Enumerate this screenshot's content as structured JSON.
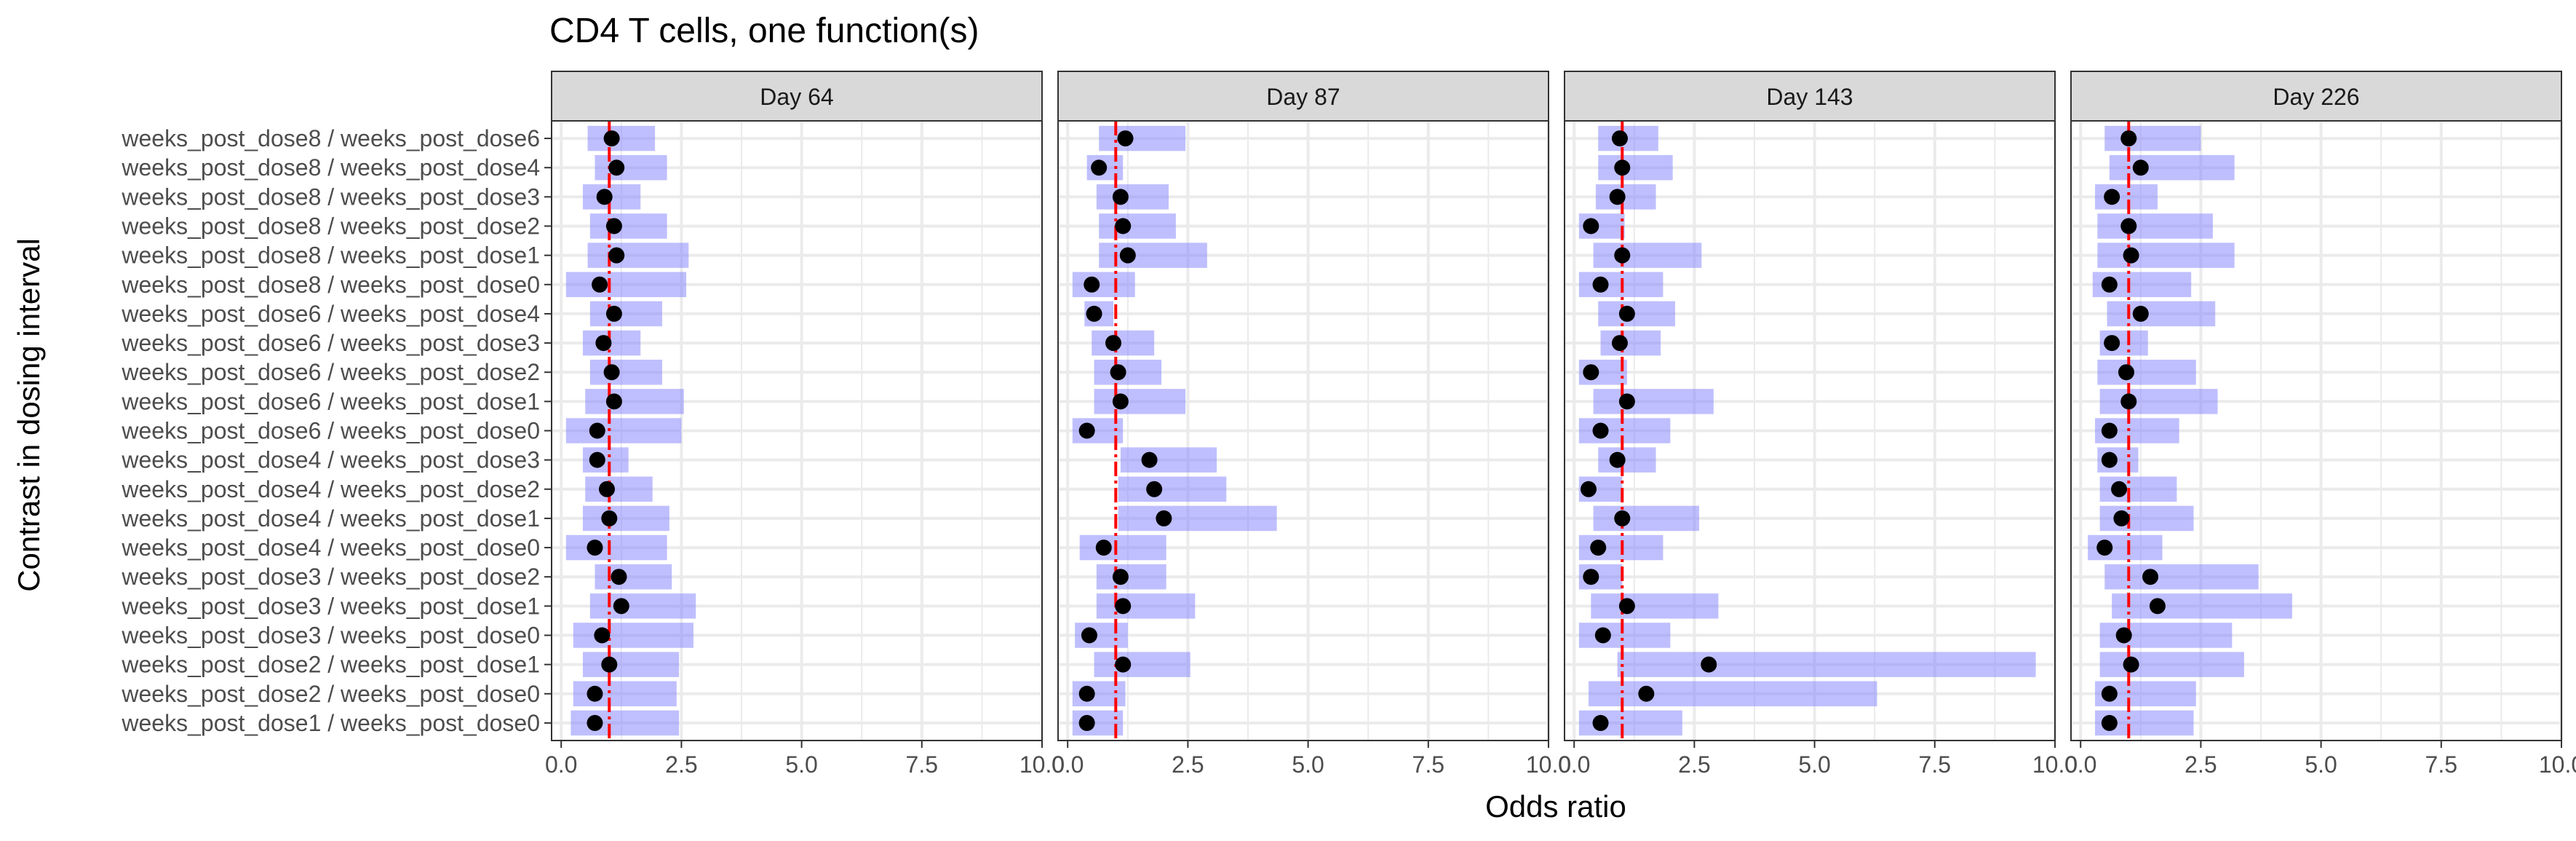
{
  "chart_data": {
    "type": "scatter",
    "title": "CD4 T cells, one function(s)",
    "xlabel": "Odds ratio",
    "ylabel": "Contrast in dosing interval",
    "xlim": [
      -0.2,
      10.0
    ],
    "x_ticks": [
      0.0,
      2.5,
      5.0,
      7.5,
      10.0
    ],
    "x_tick_labels": [
      "0.0",
      "2.5",
      "5.0",
      "7.5",
      "10.0"
    ],
    "reference_line": 1.0,
    "grid": true,
    "legend": "none",
    "colors": {
      "interval": "#8080ff",
      "point": "#000000",
      "reference": "#ff0000",
      "strip_fill": "#d9d9d9",
      "panel_border": "#333333",
      "grid": "#ebebeb"
    },
    "categories": [
      "weeks_post_dose8 / weeks_post_dose6",
      "weeks_post_dose8 / weeks_post_dose4",
      "weeks_post_dose8 / weeks_post_dose3",
      "weeks_post_dose8 / weeks_post_dose2",
      "weeks_post_dose8 / weeks_post_dose1",
      "weeks_post_dose8 / weeks_post_dose0",
      "weeks_post_dose6 / weeks_post_dose4",
      "weeks_post_dose6 / weeks_post_dose3",
      "weeks_post_dose6 / weeks_post_dose2",
      "weeks_post_dose6 / weeks_post_dose1",
      "weeks_post_dose6 / weeks_post_dose0",
      "weeks_post_dose4 / weeks_post_dose3",
      "weeks_post_dose4 / weeks_post_dose2",
      "weeks_post_dose4 / weeks_post_dose1",
      "weeks_post_dose4 / weeks_post_dose0",
      "weeks_post_dose3 / weeks_post_dose2",
      "weeks_post_dose3 / weeks_post_dose1",
      "weeks_post_dose3 / weeks_post_dose0",
      "weeks_post_dose2 / weeks_post_dose1",
      "weeks_post_dose2 / weeks_post_dose0",
      "weeks_post_dose1 / weeks_post_dose0"
    ],
    "panels": [
      {
        "name": "Day 64",
        "estimate": [
          1.05,
          1.15,
          0.9,
          1.1,
          1.15,
          0.8,
          1.1,
          0.88,
          1.05,
          1.1,
          0.75,
          0.75,
          0.95,
          1.0,
          0.7,
          1.2,
          1.25,
          0.85,
          1.0,
          0.7,
          0.7
        ],
        "lower": [
          0.55,
          0.7,
          0.45,
          0.6,
          0.55,
          0.1,
          0.6,
          0.45,
          0.6,
          0.5,
          0.1,
          0.45,
          0.5,
          0.45,
          0.1,
          0.7,
          0.6,
          0.25,
          0.45,
          0.25,
          0.2
        ],
        "upper": [
          1.95,
          2.2,
          1.65,
          2.2,
          2.65,
          2.6,
          2.1,
          1.65,
          2.1,
          2.55,
          2.5,
          1.4,
          1.9,
          2.25,
          2.2,
          2.3,
          2.8,
          2.75,
          2.45,
          2.4,
          2.45
        ]
      },
      {
        "name": "Day 87",
        "estimate": [
          1.2,
          0.65,
          1.1,
          1.15,
          1.25,
          0.5,
          0.55,
          0.95,
          1.05,
          1.1,
          0.4,
          1.7,
          1.8,
          2.0,
          0.75,
          1.1,
          1.15,
          0.45,
          1.15,
          0.4,
          0.4
        ],
        "lower": [
          0.65,
          0.4,
          0.6,
          0.65,
          0.65,
          0.1,
          0.35,
          0.5,
          0.55,
          0.55,
          0.1,
          1.1,
          1.05,
          1.05,
          0.25,
          0.6,
          0.6,
          0.15,
          0.55,
          0.1,
          0.1
        ],
        "upper": [
          2.45,
          1.15,
          2.1,
          2.25,
          2.9,
          1.4,
          0.95,
          1.8,
          1.95,
          2.45,
          1.15,
          3.1,
          3.3,
          4.35,
          2.05,
          2.05,
          2.65,
          1.25,
          2.55,
          1.2,
          1.15
        ]
      },
      {
        "name": "Day 143",
        "estimate": [
          0.95,
          1.0,
          0.9,
          0.35,
          1.0,
          0.55,
          1.1,
          0.95,
          0.35,
          1.1,
          0.55,
          0.9,
          0.3,
          1.0,
          0.5,
          0.35,
          1.1,
          0.6,
          2.8,
          1.5,
          0.55
        ],
        "lower": [
          0.5,
          0.5,
          0.45,
          0.1,
          0.4,
          0.1,
          0.5,
          0.55,
          0.1,
          0.4,
          0.1,
          0.5,
          0.1,
          0.4,
          0.1,
          0.1,
          0.35,
          0.1,
          0.9,
          0.3,
          0.1
        ],
        "upper": [
          1.75,
          2.05,
          1.7,
          1.05,
          2.65,
          1.85,
          2.1,
          1.8,
          1.1,
          2.9,
          2.0,
          1.7,
          1.0,
          2.6,
          1.85,
          1.0,
          3.0,
          2.0,
          9.6,
          6.3,
          2.25
        ]
      },
      {
        "name": "Day 226",
        "estimate": [
          1.0,
          1.25,
          0.65,
          1.0,
          1.05,
          0.6,
          1.25,
          0.65,
          0.95,
          1.0,
          0.6,
          0.6,
          0.8,
          0.85,
          0.5,
          1.45,
          1.6,
          0.9,
          1.05,
          0.6,
          0.6
        ],
        "lower": [
          0.5,
          0.6,
          0.3,
          0.35,
          0.35,
          0.25,
          0.55,
          0.4,
          0.35,
          0.4,
          0.3,
          0.35,
          0.4,
          0.4,
          0.15,
          0.5,
          0.65,
          0.4,
          0.4,
          0.3,
          0.3
        ],
        "upper": [
          2.5,
          3.2,
          1.6,
          2.75,
          3.2,
          2.3,
          2.8,
          1.4,
          2.4,
          2.85,
          2.05,
          1.2,
          2.0,
          2.35,
          1.7,
          3.7,
          4.4,
          3.15,
          3.4,
          2.4,
          2.35
        ]
      }
    ]
  }
}
